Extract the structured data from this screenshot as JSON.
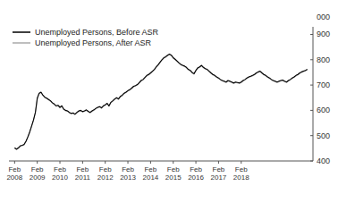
{
  "chart_data": {
    "type": "line",
    "ylabel": "000",
    "ylim": [
      400,
      930
    ],
    "yticks": [
      400,
      500,
      600,
      700,
      800,
      900
    ],
    "grid": false,
    "legend": "upper left",
    "categories": [
      "Feb\n2008",
      null,
      null,
      null,
      null,
      null,
      null,
      null,
      null,
      null,
      null,
      null,
      "Feb\n2009",
      null,
      null,
      null,
      null,
      null,
      null,
      null,
      null,
      null,
      null,
      null,
      "Feb\n2010",
      null,
      null,
      null,
      null,
      null,
      null,
      null,
      null,
      null,
      null,
      null,
      "Feb\n2011",
      null,
      null,
      null,
      null,
      null,
      null,
      null,
      null,
      null,
      null,
      null,
      "Feb\n2012",
      null,
      null,
      null,
      null,
      null,
      null,
      null,
      null,
      null,
      null,
      null,
      "Feb\n2013",
      null,
      null,
      null,
      null,
      null,
      null,
      null,
      null,
      null,
      null,
      null,
      "Feb\n2014",
      null,
      null,
      null,
      null,
      null,
      null,
      null,
      null,
      null,
      null,
      null,
      "Feb\n2015",
      null,
      null,
      null,
      null,
      null,
      null,
      null,
      null,
      null,
      null,
      null,
      "Feb\n2016",
      null,
      null,
      null,
      null,
      null,
      null,
      null,
      null,
      null,
      null,
      null,
      "Feb\n2017",
      null,
      null,
      null,
      null,
      null,
      null,
      null,
      null,
      null,
      null,
      null,
      "Feb\n2018",
      null,
      null,
      null,
      null,
      null,
      null,
      null,
      null,
      null,
      null,
      null,
      null,
      null,
      null,
      null,
      null,
      null,
      null,
      null,
      null,
      null,
      null,
      null,
      null,
      null,
      null,
      null,
      null,
      null,
      null,
      null,
      null,
      null,
      null,
      null
    ],
    "series": [
      {
        "name": "Unemployed Persons, Before ASR",
        "color": "#000000",
        "values": [
          452,
          447,
          452,
          460,
          462,
          465,
          478,
          495,
          515,
          538,
          562,
          592,
          648,
          668,
          672,
          660,
          652,
          648,
          643,
          638,
          630,
          625,
          618,
          620,
          612,
          618,
          605,
          600,
          598,
          592,
          588,
          590,
          585,
          592,
          598,
          600,
          595,
          598,
          602,
          596,
          592,
          598,
          602,
          608,
          612,
          615,
          610,
          618,
          622,
          628,
          618,
          632,
          638,
          645,
          650,
          645,
          655,
          660,
          668,
          672,
          678,
          682,
          688,
          695,
          698,
          702,
          710,
          718,
          722,
          730,
          738,
          742,
          748,
          755,
          762,
          772,
          780,
          790,
          800,
          808,
          812,
          818,
          822,
          818,
          808,
          802,
          795,
          788,
          782,
          778,
          775,
          770,
          762,
          758,
          750,
          745,
          758,
          768,
          772,
          778,
          770,
          765,
          762,
          755,
          748,
          742,
          738,
          732,
          728,
          722,
          718,
          715,
          712,
          718,
          715,
          712,
          708,
          712,
          710,
          708,
          712,
          718,
          722,
          728,
          732,
          735,
          738,
          742,
          748,
          752,
          755,
          748,
          742,
          738,
          732,
          728,
          722,
          718,
          715,
          712,
          715,
          718,
          720,
          715,
          712,
          718,
          722,
          728,
          732,
          738,
          742,
          748,
          752,
          755,
          758,
          762
        ]
      },
      {
        "name": "Unemployed Persons, After ASR",
        "color": "#aaaaaa",
        "values": [
          450,
          445,
          450,
          458,
          460,
          463,
          476,
          493,
          513,
          536,
          560,
          590,
          646,
          666,
          670,
          658,
          650,
          646,
          641,
          636,
          628,
          623,
          616,
          618,
          610,
          616,
          603,
          598,
          596,
          590,
          586,
          588,
          583,
          590,
          596,
          598,
          593,
          596,
          600,
          594,
          590,
          596,
          600,
          606,
          610,
          613,
          608,
          616,
          620,
          626,
          616,
          630,
          636,
          643,
          648,
          643,
          653,
          658,
          666,
          670,
          676,
          680,
          686,
          693,
          696,
          700,
          708,
          716,
          720,
          728,
          736,
          740,
          746,
          753,
          760,
          770,
          778,
          788,
          798,
          806,
          810,
          816,
          820,
          816,
          806,
          800,
          793,
          786,
          780,
          776,
          773,
          768,
          760,
          756,
          748,
          743,
          756,
          766,
          770,
          776,
          768,
          763,
          760,
          753,
          746,
          740,
          736,
          730,
          726,
          720,
          716,
          713,
          710,
          716,
          713,
          710,
          706,
          710,
          708,
          706,
          710,
          716,
          720,
          726,
          730,
          733,
          736,
          740,
          746,
          750,
          753,
          746,
          740,
          736,
          730,
          726,
          720,
          716,
          713,
          710,
          713,
          716,
          718,
          713,
          710,
          716,
          720,
          726,
          730,
          736,
          740,
          746,
          750,
          753,
          756,
          760
        ]
      }
    ]
  }
}
